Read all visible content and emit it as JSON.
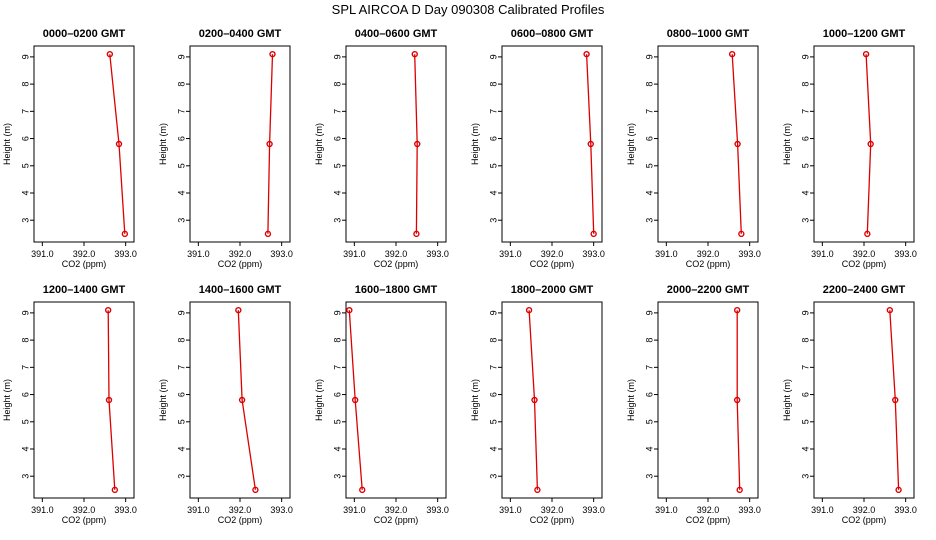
{
  "title": "SPL AIRCOA D  Day 090308  Calibrated Profiles",
  "colors": {
    "series": "#dd0000",
    "axis": "#000000"
  },
  "chart_data": [
    {
      "type": "line",
      "title": "0000–0200 GMT",
      "xlabel": "CO2 (ppm)",
      "ylabel": "Height (m)",
      "xlim": [
        390.8,
        393.2
      ],
      "ylim": [
        2.2,
        9.4
      ],
      "x_ticks": [
        "391.0",
        "392.0",
        "393.0"
      ],
      "y_ticks": [
        "3",
        "4",
        "5",
        "6",
        "7",
        "8",
        "9"
      ],
      "grid": false,
      "series": [
        {
          "x": [
            392.98,
            392.84,
            392.62
          ],
          "y": [
            2.5,
            5.8,
            9.1
          ]
        }
      ]
    },
    {
      "type": "line",
      "title": "0200–0400 GMT",
      "xlabel": "CO2 (ppm)",
      "ylabel": "Height (m)",
      "xlim": [
        390.8,
        393.2
      ],
      "ylim": [
        2.2,
        9.4
      ],
      "x_ticks": [
        "391.0",
        "392.0",
        "393.0"
      ],
      "y_ticks": [
        "3",
        "4",
        "5",
        "6",
        "7",
        "8",
        "9"
      ],
      "grid": false,
      "series": [
        {
          "x": [
            392.67,
            392.71,
            392.78
          ],
          "y": [
            2.5,
            5.8,
            9.1
          ]
        }
      ]
    },
    {
      "type": "line",
      "title": "0400–0600 GMT",
      "xlabel": "CO2 (ppm)",
      "ylabel": "Height (m)",
      "xlim": [
        390.8,
        393.2
      ],
      "ylim": [
        2.2,
        9.4
      ],
      "x_ticks": [
        "391.0",
        "392.0",
        "393.0"
      ],
      "y_ticks": [
        "3",
        "4",
        "5",
        "6",
        "7",
        "8",
        "9"
      ],
      "grid": false,
      "series": [
        {
          "x": [
            392.49,
            392.51,
            392.45
          ],
          "y": [
            2.5,
            5.8,
            9.1
          ]
        }
      ]
    },
    {
      "type": "line",
      "title": "0600–0800 GMT",
      "xlabel": "CO2 (ppm)",
      "ylabel": "Height (m)",
      "xlim": [
        390.8,
        393.2
      ],
      "ylim": [
        2.2,
        9.4
      ],
      "x_ticks": [
        "391.0",
        "392.0",
        "393.0"
      ],
      "y_ticks": [
        "3",
        "4",
        "5",
        "6",
        "7",
        "8",
        "9"
      ],
      "grid": false,
      "series": [
        {
          "x": [
            393.0,
            392.93,
            392.83
          ],
          "y": [
            2.5,
            5.8,
            9.1
          ]
        }
      ]
    },
    {
      "type": "line",
      "title": "0800–1000 GMT",
      "xlabel": "CO2 (ppm)",
      "ylabel": "Height (m)",
      "xlim": [
        390.8,
        393.2
      ],
      "ylim": [
        2.2,
        9.4
      ],
      "x_ticks": [
        "391.0",
        "392.0",
        "393.0"
      ],
      "y_ticks": [
        "3",
        "4",
        "5",
        "6",
        "7",
        "8",
        "9"
      ],
      "grid": false,
      "series": [
        {
          "x": [
            392.8,
            392.71,
            392.58
          ],
          "y": [
            2.5,
            5.8,
            9.1
          ]
        }
      ]
    },
    {
      "type": "line",
      "title": "1000–1200 GMT",
      "xlabel": "CO2 (ppm)",
      "ylabel": "Height (m)",
      "xlim": [
        390.8,
        393.2
      ],
      "ylim": [
        2.2,
        9.4
      ],
      "x_ticks": [
        "391.0",
        "392.0",
        "393.0"
      ],
      "y_ticks": [
        "3",
        "4",
        "5",
        "6",
        "7",
        "8",
        "9"
      ],
      "grid": false,
      "series": [
        {
          "x": [
            392.08,
            392.16,
            392.05
          ],
          "y": [
            2.5,
            5.8,
            9.1
          ]
        }
      ]
    },
    {
      "type": "line",
      "title": "1200–1400 GMT",
      "xlabel": "CO2 (ppm)",
      "ylabel": "Height (m)",
      "xlim": [
        390.8,
        393.2
      ],
      "ylim": [
        2.2,
        9.4
      ],
      "x_ticks": [
        "391.0",
        "392.0",
        "393.0"
      ],
      "y_ticks": [
        "3",
        "4",
        "5",
        "6",
        "7",
        "8",
        "9"
      ],
      "grid": false,
      "series": [
        {
          "x": [
            392.74,
            392.6,
            392.58
          ],
          "y": [
            2.5,
            5.8,
            9.1
          ]
        }
      ]
    },
    {
      "type": "line",
      "title": "1400–1600 GMT",
      "xlabel": "CO2 (ppm)",
      "ylabel": "Height (m)",
      "xlim": [
        390.8,
        393.2
      ],
      "ylim": [
        2.2,
        9.4
      ],
      "x_ticks": [
        "391.0",
        "392.0",
        "393.0"
      ],
      "y_ticks": [
        "3",
        "4",
        "5",
        "6",
        "7",
        "8",
        "9"
      ],
      "grid": false,
      "series": [
        {
          "x": [
            392.37,
            392.05,
            391.96
          ],
          "y": [
            2.5,
            5.8,
            9.1
          ]
        }
      ]
    },
    {
      "type": "line",
      "title": "1600–1800 GMT",
      "xlabel": "CO2 (ppm)",
      "ylabel": "Height (m)",
      "xlim": [
        390.8,
        393.2
      ],
      "ylim": [
        2.2,
        9.4
      ],
      "x_ticks": [
        "391.0",
        "392.0",
        "393.0"
      ],
      "y_ticks": [
        "3",
        "4",
        "5",
        "6",
        "7",
        "8",
        "9"
      ],
      "grid": false,
      "series": [
        {
          "x": [
            391.19,
            391.02,
            390.88
          ],
          "y": [
            2.5,
            5.8,
            9.1
          ]
        }
      ]
    },
    {
      "type": "line",
      "title": "1800–2000 GMT",
      "xlabel": "CO2 (ppm)",
      "ylabel": "Height (m)",
      "xlim": [
        390.8,
        393.2
      ],
      "ylim": [
        2.2,
        9.4
      ],
      "x_ticks": [
        "391.0",
        "392.0",
        "393.0"
      ],
      "y_ticks": [
        "3",
        "4",
        "5",
        "6",
        "7",
        "8",
        "9"
      ],
      "grid": false,
      "series": [
        {
          "x": [
            391.65,
            391.58,
            391.45
          ],
          "y": [
            2.5,
            5.8,
            9.1
          ]
        }
      ]
    },
    {
      "type": "line",
      "title": "2000–2200 GMT",
      "xlabel": "CO2 (ppm)",
      "ylabel": "Height (m)",
      "xlim": [
        390.8,
        393.2
      ],
      "ylim": [
        2.2,
        9.4
      ],
      "x_ticks": [
        "391.0",
        "392.0",
        "393.0"
      ],
      "y_ticks": [
        "3",
        "4",
        "5",
        "6",
        "7",
        "8",
        "9"
      ],
      "grid": false,
      "series": [
        {
          "x": [
            392.76,
            392.7,
            392.7
          ],
          "y": [
            2.5,
            5.8,
            9.1
          ]
        }
      ]
    },
    {
      "type": "line",
      "title": "2200–2400 GMT",
      "xlabel": "CO2 (ppm)",
      "ylabel": "Height (m)",
      "xlim": [
        390.8,
        393.2
      ],
      "ylim": [
        2.2,
        9.4
      ],
      "x_ticks": [
        "391.0",
        "392.0",
        "393.0"
      ],
      "y_ticks": [
        "3",
        "4",
        "5",
        "6",
        "7",
        "8",
        "9"
      ],
      "grid": false,
      "series": [
        {
          "x": [
            392.83,
            392.75,
            392.62
          ],
          "y": [
            2.5,
            5.8,
            9.1
          ]
        }
      ]
    }
  ]
}
